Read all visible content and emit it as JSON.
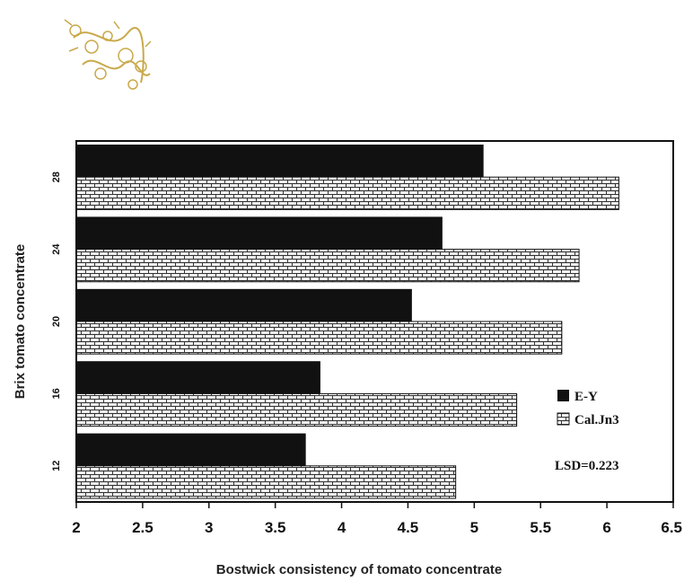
{
  "chart_data": {
    "type": "bar",
    "orientation": "horizontal",
    "categories": [
      "28",
      "24",
      "20",
      "16",
      "12"
    ],
    "series": [
      {
        "name": "E-Y",
        "values": [
          5.07,
          4.76,
          4.53,
          3.84,
          3.73
        ],
        "color": "#111111"
      },
      {
        "name": "Cal.Jn3",
        "values": [
          6.09,
          5.79,
          5.66,
          5.32,
          4.86
        ],
        "color": "#ffffff"
      }
    ],
    "xlabel": "Bostwick consistency of tomato concentrate",
    "ylabel": "Brix tomato concentrate",
    "xlim": [
      2,
      6.5
    ],
    "xticks": [
      "2",
      "2.5",
      "3",
      "3.5",
      "4",
      "4.5",
      "5",
      "5.5",
      "6",
      "6.5"
    ],
    "annotation": "LSD=0.223",
    "legend_position": "right",
    "grid": false
  }
}
